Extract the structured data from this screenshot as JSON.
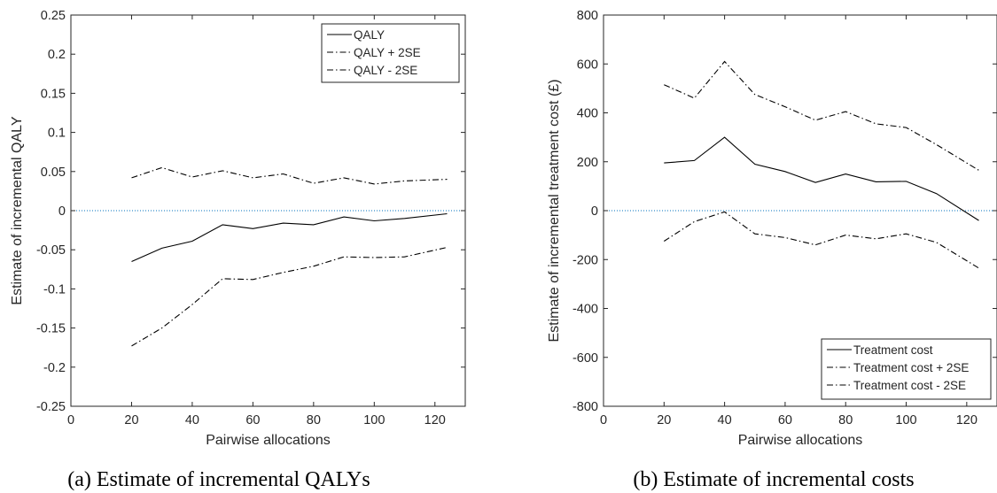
{
  "chart_data": [
    {
      "type": "line",
      "caption": "(a) Estimate of incremental QALYs",
      "xlabel": "Pairwise allocations",
      "ylabel": "Estimate of incremental QALY",
      "xlim": [
        0,
        130
      ],
      "ylim": [
        -0.25,
        0.25
      ],
      "xticks": [
        0,
        20,
        40,
        60,
        80,
        100,
        120
      ],
      "yticks": [
        -0.25,
        -0.2,
        -0.15,
        -0.1,
        -0.05,
        0,
        0.05,
        0.1,
        0.15,
        0.2,
        0.25
      ],
      "ytick_labels": [
        "-0.25",
        "-0.2",
        "-0.15",
        "-0.1",
        "-0.05",
        "0",
        "0.05",
        "0.1",
        "0.15",
        "0.2",
        "0.25"
      ],
      "zero_reference_line": true,
      "legend_position": "top-right",
      "x": [
        20,
        30,
        40,
        50,
        60,
        70,
        80,
        90,
        100,
        110,
        124
      ],
      "series": [
        {
          "name": "QALY",
          "style": "solid",
          "values": [
            -0.065,
            -0.048,
            -0.039,
            -0.018,
            -0.023,
            -0.016,
            -0.018,
            -0.008,
            -0.013,
            -0.01,
            -0.004
          ]
        },
        {
          "name": "QALY + 2SE",
          "style": "dashdot",
          "values": [
            0.042,
            0.055,
            0.043,
            0.051,
            0.042,
            0.047,
            0.035,
            0.042,
            0.034,
            0.038,
            0.04
          ]
        },
        {
          "name": "QALY - 2SE",
          "style": "dashdot",
          "values": [
            -0.173,
            -0.15,
            -0.12,
            -0.087,
            -0.088,
            -0.079,
            -0.071,
            -0.059,
            -0.06,
            -0.059,
            -0.047
          ]
        }
      ]
    },
    {
      "type": "line",
      "caption": "(b) Estimate of incremental costs",
      "xlabel": "Pairwise allocations",
      "ylabel": "Estimate of incremental treatment cost (£)",
      "xlim": [
        0,
        130
      ],
      "ylim": [
        -800,
        800
      ],
      "xticks": [
        0,
        20,
        40,
        60,
        80,
        100,
        120
      ],
      "yticks": [
        -800,
        -600,
        -400,
        -200,
        0,
        200,
        400,
        600,
        800
      ],
      "ytick_labels": [
        "-800",
        "-600",
        "-400",
        "-200",
        "0",
        "200",
        "400",
        "600",
        "800"
      ],
      "zero_reference_line": true,
      "legend_position": "bottom-right",
      "x": [
        20,
        30,
        40,
        50,
        60,
        70,
        80,
        90,
        100,
        110,
        124
      ],
      "series": [
        {
          "name": "Treatment cost",
          "style": "solid",
          "values": [
            195,
            205,
            300,
            190,
            160,
            115,
            150,
            118,
            120,
            70,
            -40
          ]
        },
        {
          "name": "Treatment cost + 2SE",
          "style": "dashdot",
          "values": [
            515,
            460,
            610,
            475,
            425,
            370,
            405,
            355,
            340,
            270,
            165
          ]
        },
        {
          "name": "Treatment cost - 2SE",
          "style": "dashdot",
          "values": [
            -125,
            -45,
            -5,
            -95,
            -110,
            -140,
            -100,
            -115,
            -95,
            -130,
            -235
          ]
        }
      ]
    }
  ]
}
